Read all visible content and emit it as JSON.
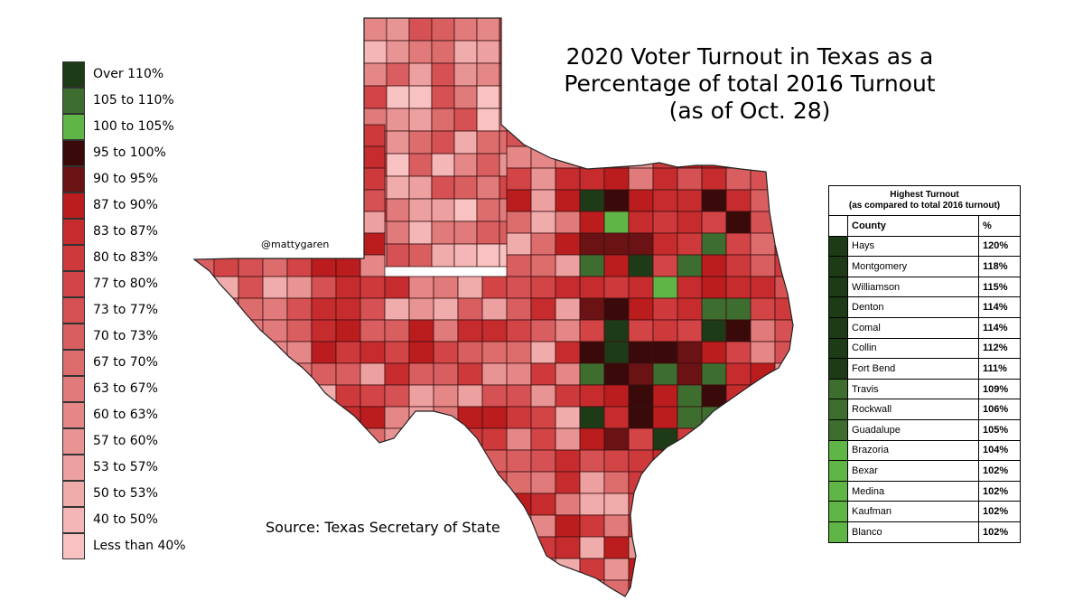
{
  "title": {
    "line1": "2020 Voter Turnout in Texas as a",
    "line2": "Percentage of total 2016 Turnout",
    "line3": "(as of Oct. 28)"
  },
  "credit": "@mattygaren",
  "source": "Source: Texas Secretary of State",
  "legend": [
    {
      "label": "Over 110%",
      "color": "#1e3b18"
    },
    {
      "label": "105 to 110%",
      "color": "#3d6e2f"
    },
    {
      "label": "100 to 105%",
      "color": "#5fb546"
    },
    {
      "label": "95 to 100%",
      "color": "#3a0a0a"
    },
    {
      "label": "90 to 95%",
      "color": "#6a1214"
    },
    {
      "label": "87 to 90%",
      "color": "#bb1d1e"
    },
    {
      "label": "83 to 87%",
      "color": "#c62c2d"
    },
    {
      "label": "80 to 83%",
      "color": "#ce3a3c"
    },
    {
      "label": "77 to 80%",
      "color": "#d24446"
    },
    {
      "label": "73 to 77%",
      "color": "#d55153"
    },
    {
      "label": "70 to 73%",
      "color": "#d95e60"
    },
    {
      "label": "67 to 70%",
      "color": "#dd6c6d"
    },
    {
      "label": "63 to 67%",
      "color": "#e17a7a"
    },
    {
      "label": "60 to 63%",
      "color": "#e58787"
    },
    {
      "label": "57 to 60%",
      "color": "#e99494"
    },
    {
      "label": "53 to 57%",
      "color": "#eda0a0"
    },
    {
      "label": "50 to 53%",
      "color": "#f0abab"
    },
    {
      "label": "40 to 50%",
      "color": "#f4b6b6"
    },
    {
      "label": "Less than 40%",
      "color": "#f8c2c2"
    }
  ],
  "table": {
    "caption_line1": "Highest Turnout",
    "caption_line2": "(as compared to total 2016 turnout)",
    "col_county": "County",
    "col_pct": "%",
    "rows": [
      {
        "county": "Hays",
        "pct": "120%",
        "color": "#1e3b18"
      },
      {
        "county": "Montgomery",
        "pct": "118%",
        "color": "#1e3b18"
      },
      {
        "county": "Williamson",
        "pct": "115%",
        "color": "#1e3b18"
      },
      {
        "county": "Denton",
        "pct": "114%",
        "color": "#1e3b18"
      },
      {
        "county": "Comal",
        "pct": "114%",
        "color": "#1e3b18"
      },
      {
        "county": "Collin",
        "pct": "112%",
        "color": "#1e3b18"
      },
      {
        "county": "Fort Bend",
        "pct": "111%",
        "color": "#1e3b18"
      },
      {
        "county": "Travis",
        "pct": "109%",
        "color": "#3d6e2f"
      },
      {
        "county": "Rockwall",
        "pct": "106%",
        "color": "#3d6e2f"
      },
      {
        "county": "Guadalupe",
        "pct": "105%",
        "color": "#3d6e2f"
      },
      {
        "county": "Brazoria",
        "pct": "104%",
        "color": "#5fb546"
      },
      {
        "county": "Bexar",
        "pct": "102%",
        "color": "#5fb546"
      },
      {
        "county": "Medina",
        "pct": "102%",
        "color": "#5fb546"
      },
      {
        "county": "Kaufman",
        "pct": "102%",
        "color": "#5fb546"
      },
      {
        "county": "Blanco",
        "pct": "102%",
        "color": "#5fb546"
      }
    ]
  }
}
